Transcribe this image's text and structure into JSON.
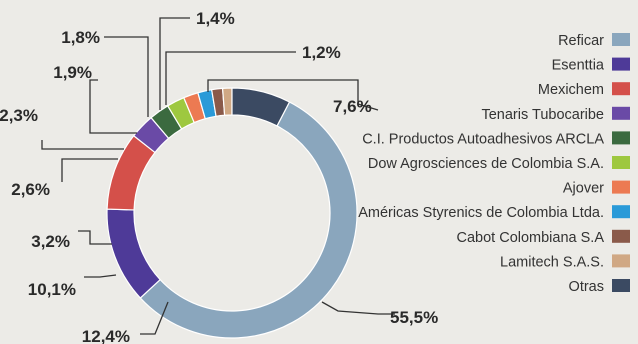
{
  "chart_data": {
    "type": "pie",
    "variant": "donut",
    "unit": "%",
    "legend_position": "right",
    "slices": [
      {
        "name": "Reficar",
        "value": 55.5,
        "label": "55,5%",
        "color": "#8aa6bd"
      },
      {
        "name": "Esenttia",
        "value": 12.4,
        "label": "12,4%",
        "color": "#4e3a98"
      },
      {
        "name": "Mexichem",
        "value": 10.1,
        "label": "10,1%",
        "color": "#d4504a"
      },
      {
        "name": "Tenaris Tubocaribe",
        "value": 3.2,
        "label": "3,2%",
        "color": "#6a4aa6"
      },
      {
        "name": "C.I. Productos Autoadhesivos ARCLA",
        "value": 2.6,
        "label": "2,6%",
        "color": "#3b6a3f"
      },
      {
        "name": "Dow Agrosciences de Colombia S.A.",
        "value": 2.3,
        "label": "2,3%",
        "color": "#9ec83f"
      },
      {
        "name": "Ajover",
        "value": 1.9,
        "label": "1,9%",
        "color": "#ec7a52"
      },
      {
        "name": "Américas Styrenics de Colombia Ltda.",
        "value": 1.8,
        "label": "1,8%",
        "color": "#2a9ad8"
      },
      {
        "name": "Cabot Colombiana S.A",
        "value": 1.4,
        "label": "1,4%",
        "color": "#8a5a4a"
      },
      {
        "name": "Lamitech S.A.S.",
        "value": 1.2,
        "label": "1,2%",
        "color": "#d0a884"
      },
      {
        "name": "Otras",
        "value": 7.6,
        "label": "7,6%",
        "color": "#3b4a62"
      }
    ]
  }
}
